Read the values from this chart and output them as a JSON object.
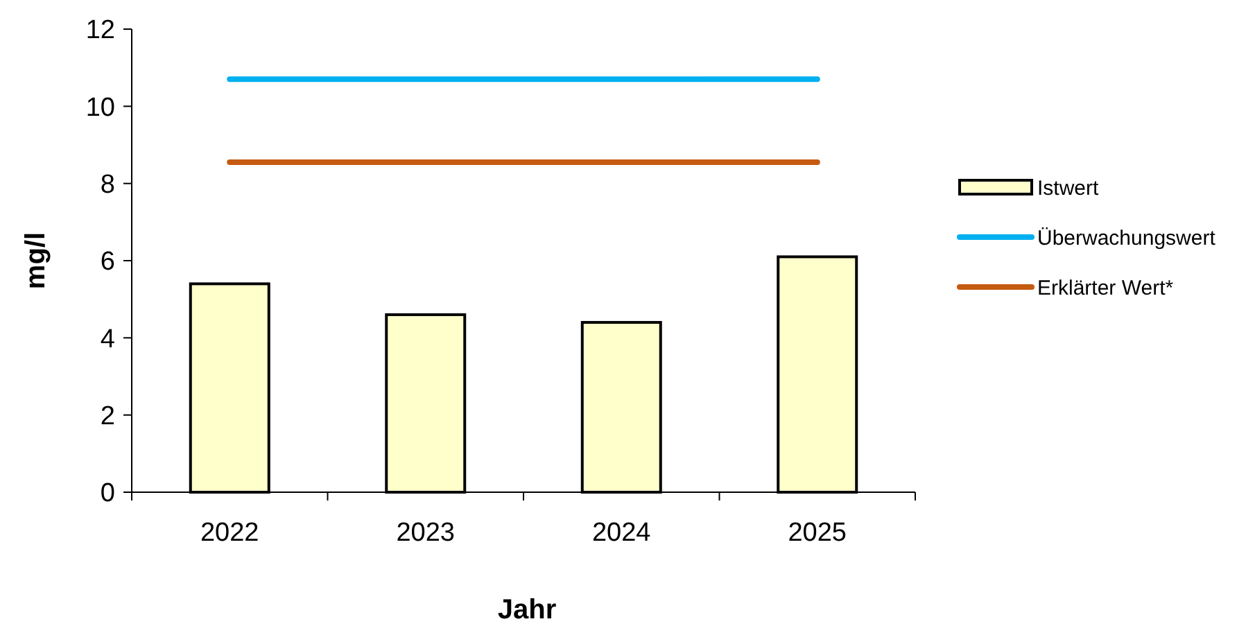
{
  "chart_data": {
    "type": "bar",
    "xlabel": "Jahr",
    "ylabel": "mg/l",
    "categories": [
      "2022",
      "2023",
      "2024",
      "2025"
    ],
    "series": [
      {
        "name": "Istwert",
        "color": "#ffffcc",
        "values": [
          5.4,
          4.6,
          4.4,
          6.1
        ]
      },
      {
        "name": "Überwachungswert",
        "type": "line",
        "color": "#00b0f0",
        "values": [
          10.7,
          10.7,
          10.7,
          10.7
        ]
      },
      {
        "name": "Erklärter Wert*",
        "type": "line",
        "color": "#c55a11",
        "values": [
          8.55,
          8.55,
          8.55,
          8.55
        ]
      }
    ],
    "ylim": [
      0,
      12
    ],
    "yticks": [
      0,
      2,
      4,
      6,
      8,
      10,
      12
    ],
    "grid": false,
    "legend": "right",
    "marker": "none",
    "line_style": "solid"
  }
}
